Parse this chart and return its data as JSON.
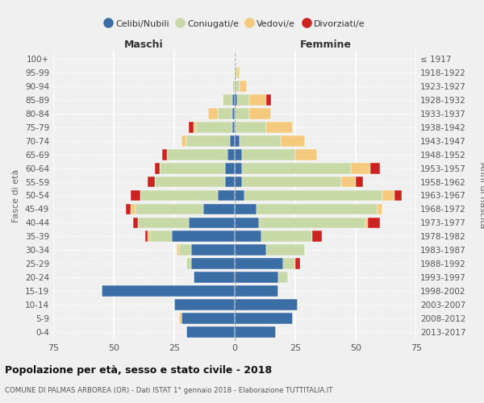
{
  "age_groups": [
    "0-4",
    "5-9",
    "10-14",
    "15-19",
    "20-24",
    "25-29",
    "30-34",
    "35-39",
    "40-44",
    "45-49",
    "50-54",
    "55-59",
    "60-64",
    "65-69",
    "70-74",
    "75-79",
    "80-84",
    "85-89",
    "90-94",
    "95-99",
    "100+"
  ],
  "birth_years": [
    "2013-2017",
    "2008-2012",
    "2003-2007",
    "1998-2002",
    "1993-1997",
    "1988-1992",
    "1983-1987",
    "1978-1982",
    "1973-1977",
    "1968-1972",
    "1963-1967",
    "1958-1962",
    "1953-1957",
    "1948-1952",
    "1943-1947",
    "1938-1942",
    "1933-1937",
    "1928-1932",
    "1923-1927",
    "1918-1922",
    "≤ 1917"
  ],
  "colors": {
    "celibi": "#3a6ea5",
    "coniugati": "#c8d9a8",
    "vedovi": "#f5ca7e",
    "divorziati": "#cc2222"
  },
  "males": {
    "celibi": [
      20,
      22,
      25,
      55,
      17,
      18,
      18,
      26,
      19,
      13,
      7,
      4,
      4,
      3,
      2,
      1,
      1,
      1,
      0,
      0,
      0
    ],
    "coniugati": [
      0,
      0,
      0,
      0,
      0,
      2,
      5,
      9,
      21,
      28,
      32,
      29,
      27,
      25,
      18,
      15,
      6,
      4,
      1,
      0,
      0
    ],
    "vedovi": [
      0,
      1,
      0,
      0,
      0,
      0,
      1,
      1,
      0,
      2,
      0,
      0,
      0,
      0,
      2,
      1,
      4,
      0,
      0,
      0,
      0
    ],
    "divorziati": [
      0,
      0,
      0,
      0,
      0,
      0,
      0,
      1,
      2,
      2,
      4,
      3,
      2,
      2,
      0,
      2,
      0,
      0,
      0,
      0,
      0
    ]
  },
  "females": {
    "nubili": [
      17,
      24,
      26,
      18,
      18,
      20,
      13,
      11,
      10,
      9,
      4,
      3,
      3,
      3,
      2,
      0,
      0,
      1,
      0,
      0,
      0
    ],
    "coniugate": [
      0,
      0,
      0,
      0,
      4,
      5,
      16,
      21,
      44,
      50,
      57,
      41,
      45,
      22,
      17,
      13,
      6,
      5,
      2,
      1,
      0
    ],
    "vedove": [
      0,
      0,
      0,
      0,
      0,
      0,
      0,
      0,
      1,
      2,
      5,
      6,
      8,
      9,
      10,
      11,
      9,
      7,
      3,
      1,
      0
    ],
    "divorziate": [
      0,
      0,
      0,
      0,
      0,
      2,
      0,
      4,
      5,
      0,
      3,
      3,
      4,
      0,
      0,
      0,
      0,
      2,
      0,
      0,
      0
    ]
  },
  "xlim": 75,
  "title": "Popolazione per età, sesso e stato civile - 2018",
  "subtitle": "COMUNE DI PALMAS ARBOREA (OR) - Dati ISTAT 1° gennaio 2018 - Elaborazione TUTTITALIA.IT",
  "ylabel_left": "Fasce di età",
  "ylabel_right": "Anni di nascita",
  "label_maschi": "Maschi",
  "label_femmine": "Femmine",
  "legend_labels": [
    "Celibi/Nubili",
    "Coniugati/e",
    "Vedovi/e",
    "Divorziati/e"
  ],
  "background_color": "#f0f0f0"
}
